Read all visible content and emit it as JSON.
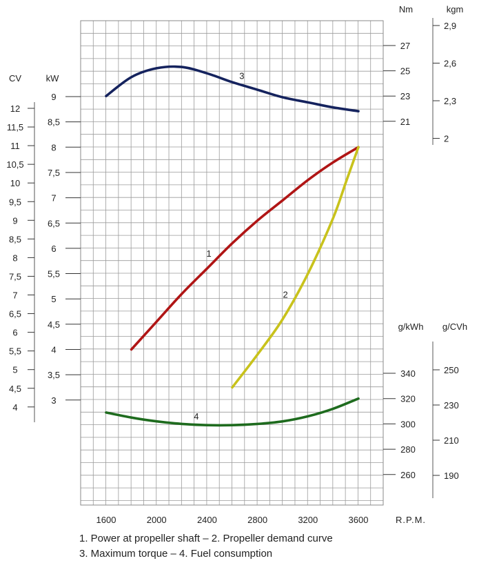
{
  "chart_data": {
    "type": "line",
    "x_unit_label": "R.P.M.",
    "x_ticks": [
      1600,
      2000,
      2400,
      2800,
      3200,
      3600
    ],
    "xlim": [
      1250,
      3850
    ],
    "axes": {
      "kW": {
        "label": "kW",
        "ticks": [
          "9",
          "8,5",
          "8",
          "7,5",
          "7",
          "6,5",
          "6",
          "5,5",
          "5",
          "4,5",
          "4",
          "3,5",
          "3"
        ],
        "values": [
          9,
          8.5,
          8,
          7.5,
          7,
          6.5,
          6,
          5.5,
          5,
          4.5,
          4,
          3.5,
          3
        ]
      },
      "CV": {
        "label": "CV",
        "ticks": [
          "12",
          "11,5",
          "11",
          "10,5",
          "10",
          "9,5",
          "9",
          "8,5",
          "8",
          "7,5",
          "7",
          "6,5",
          "6",
          "5,5",
          "5",
          "4,5",
          "4"
        ],
        "values": [
          12,
          11.5,
          11,
          10.5,
          10,
          9.5,
          9,
          8.5,
          8,
          7.5,
          7,
          6.5,
          6,
          5.5,
          5,
          4.5,
          4
        ]
      },
      "Nm": {
        "label": "Nm",
        "ticks": [
          "27",
          "25",
          "23",
          "21"
        ],
        "values": [
          27,
          25,
          23,
          21
        ]
      },
      "kgm": {
        "label": "kgm",
        "ticks": [
          "2,9",
          "2,6",
          "2,3",
          "2"
        ],
        "values": [
          2.9,
          2.6,
          2.3,
          2
        ]
      },
      "gkWh": {
        "label": "g/kWh",
        "ticks": [
          "340",
          "320",
          "300",
          "280",
          "260"
        ],
        "values": [
          340,
          320,
          300,
          280,
          260
        ]
      },
      "gCVh": {
        "label": "g/CVh",
        "ticks": [
          "250",
          "230",
          "210",
          "190"
        ],
        "values": [
          250,
          230,
          210,
          190
        ]
      }
    },
    "series": [
      {
        "id": "1",
        "axis": "kW",
        "color": "#b01515",
        "x": [
          1800,
          2000,
          2200,
          2400,
          2600,
          2800,
          3000,
          3200,
          3400,
          3600
        ],
        "y": [
          4.0,
          4.55,
          5.1,
          5.6,
          6.1,
          6.55,
          6.95,
          7.35,
          7.7,
          8.0
        ]
      },
      {
        "id": "2",
        "axis": "kW",
        "color": "#c8c21c",
        "x": [
          2600,
          2800,
          3000,
          3200,
          3400,
          3500,
          3600
        ],
        "y": [
          3.25,
          3.9,
          4.6,
          5.5,
          6.6,
          7.3,
          8.0
        ]
      },
      {
        "id": "3",
        "axis": "Nm",
        "color": "#15235e",
        "x": [
          1600,
          1800,
          2000,
          2200,
          2400,
          2600,
          2800,
          3000,
          3200,
          3400,
          3600
        ],
        "y": [
          23.0,
          24.5,
          25.2,
          25.3,
          24.8,
          24.1,
          23.5,
          22.9,
          22.5,
          22.1,
          21.8
        ]
      },
      {
        "id": "4",
        "axis": "gkWh",
        "color": "#1e6b1e",
        "x": [
          1600,
          1800,
          2000,
          2200,
          2400,
          2600,
          2800,
          3000,
          3200,
          3400,
          3600
        ],
        "y": [
          309,
          305,
          302,
          300,
          299,
          299,
          300,
          302,
          306,
          312,
          320
        ]
      }
    ],
    "legend": [
      "1. Power at propeller shaft –  2. Propeller demand curve",
      "3. Maximum torque –  4. Fuel consumption"
    ]
  }
}
